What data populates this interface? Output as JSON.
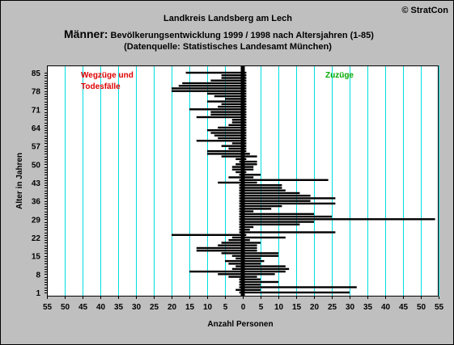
{
  "copyright": "© StratCon",
  "header": {
    "line1": "Landkreis Landsberg am Lech",
    "line2_big": "Männer:",
    "line2_rest": " Bevölkerungsentwicklung 1999 / 1998  nach Altersjahren (1-85)",
    "line3": "(Datenquelle: Statistisches Landesamt München)"
  },
  "colors": {
    "background": "#bfbfbf",
    "plot_background": "#ffffff",
    "grid": "#00dede",
    "bars": "#000000",
    "left_annotation": "#dd0000",
    "right_annotation": "#00aa00"
  },
  "chart_data": {
    "type": "bar",
    "orientation": "horizontal",
    "xlabel": "Anzahl Personen",
    "ylabel": "Alter in Jahren",
    "xlim": [
      -55,
      55
    ],
    "ylim": [
      1,
      87
    ],
    "x_ticks": [
      -55,
      -50,
      -45,
      -40,
      -35,
      -30,
      -25,
      -20,
      -15,
      -10,
      -5,
      0,
      5,
      10,
      15,
      20,
      25,
      30,
      35,
      40,
      45,
      50,
      55
    ],
    "x_tick_labels": [
      "55",
      "50",
      "45",
      "40",
      "35",
      "30",
      "25",
      "20",
      "15",
      "10",
      "5",
      "0",
      "5",
      "10",
      "15",
      "20",
      "25",
      "30",
      "35",
      "40",
      "45",
      "50",
      "55"
    ],
    "y_ticks": [
      1,
      8,
      15,
      22,
      29,
      36,
      43,
      50,
      57,
      64,
      71,
      78,
      85
    ],
    "y_tick_labels": [
      "1",
      "8",
      "15",
      "22",
      "29",
      "36",
      "43",
      "50",
      "57",
      "64",
      "71",
      "78",
      "85"
    ],
    "grid": true,
    "annotations": {
      "left": [
        "Wegzüge und",
        "Todesfälle"
      ],
      "right": "Zuzüge"
    },
    "series": [
      {
        "name": "Wegzüge und Todesfälle",
        "ages": [
          1,
          2,
          3,
          4,
          5,
          6,
          7,
          8,
          9,
          10,
          11,
          12,
          13,
          14,
          15,
          16,
          17,
          18,
          19,
          20,
          21,
          22,
          23,
          24,
          25,
          26,
          27,
          28,
          29,
          30,
          31,
          32,
          33,
          34,
          35,
          36,
          37,
          38,
          39,
          40,
          41,
          42,
          43,
          44,
          45,
          46,
          47,
          48,
          49,
          50,
          51,
          52,
          53,
          54,
          55,
          56,
          57,
          58,
          59,
          60,
          61,
          62,
          63,
          64,
          65,
          66,
          67,
          68,
          69,
          70,
          71,
          72,
          73,
          74,
          75,
          76,
          77,
          78,
          79,
          80,
          81,
          82,
          83,
          84,
          85
        ],
        "values": [
          -1,
          -2,
          -1,
          -1,
          -1,
          -1,
          -4,
          -7,
          -15,
          -3,
          -2,
          -4,
          -5,
          -2,
          -3,
          -6,
          -13,
          -13,
          -7,
          -6,
          -4,
          -3,
          -20,
          -1,
          -1,
          -1,
          -1,
          -1,
          -1,
          -1,
          -1,
          -1,
          -1,
          -1,
          -1,
          -1,
          -1,
          -1,
          -1,
          -1,
          -1,
          -1,
          -7,
          -1,
          -4,
          -1,
          -2,
          -3,
          -3,
          -2,
          -1,
          -2,
          -6,
          -10,
          -10,
          -4,
          -6,
          -3,
          -13,
          -7,
          -8,
          -9,
          -10,
          -7,
          -4,
          -3,
          -3,
          -13,
          -9,
          -9,
          -15,
          -7,
          -6,
          -10,
          -5,
          -8,
          -10,
          -20,
          -20,
          -18,
          -17,
          -9,
          -6,
          -6,
          -16
        ]
      },
      {
        "name": "Zuzüge",
        "ages": [
          1,
          2,
          3,
          4,
          5,
          6,
          7,
          8,
          9,
          10,
          11,
          12,
          13,
          14,
          15,
          16,
          17,
          18,
          19,
          20,
          21,
          22,
          23,
          24,
          25,
          26,
          27,
          28,
          29,
          30,
          31,
          32,
          33,
          34,
          35,
          36,
          37,
          38,
          39,
          40,
          41,
          42,
          43,
          44,
          45,
          46,
          47,
          48,
          49,
          50,
          51,
          52,
          53,
          54,
          55,
          56,
          57,
          58,
          59,
          60,
          61,
          62,
          63,
          64,
          65,
          66,
          67,
          68,
          69,
          70,
          71,
          72,
          73,
          74,
          75,
          76,
          77,
          78,
          79,
          80,
          81,
          82,
          83,
          84,
          85
        ],
        "values": [
          30,
          5,
          32,
          5,
          10,
          5,
          4,
          9,
          12,
          13,
          12,
          5,
          6,
          5,
          10,
          10,
          4,
          4,
          4,
          5,
          2,
          12,
          1,
          26,
          2,
          3,
          16,
          20,
          54,
          25,
          20,
          3,
          8,
          11,
          26,
          19,
          26,
          19,
          16,
          12,
          11,
          11,
          4,
          24,
          3,
          5,
          1,
          3,
          3,
          4,
          4,
          1,
          4,
          2,
          1,
          1,
          1,
          1,
          1,
          1,
          1,
          1,
          1,
          1,
          1,
          1,
          1,
          1,
          1,
          1,
          1,
          1,
          1,
          1,
          1,
          1,
          1,
          1,
          1,
          1,
          1,
          1,
          1,
          1,
          1
        ]
      }
    ]
  }
}
